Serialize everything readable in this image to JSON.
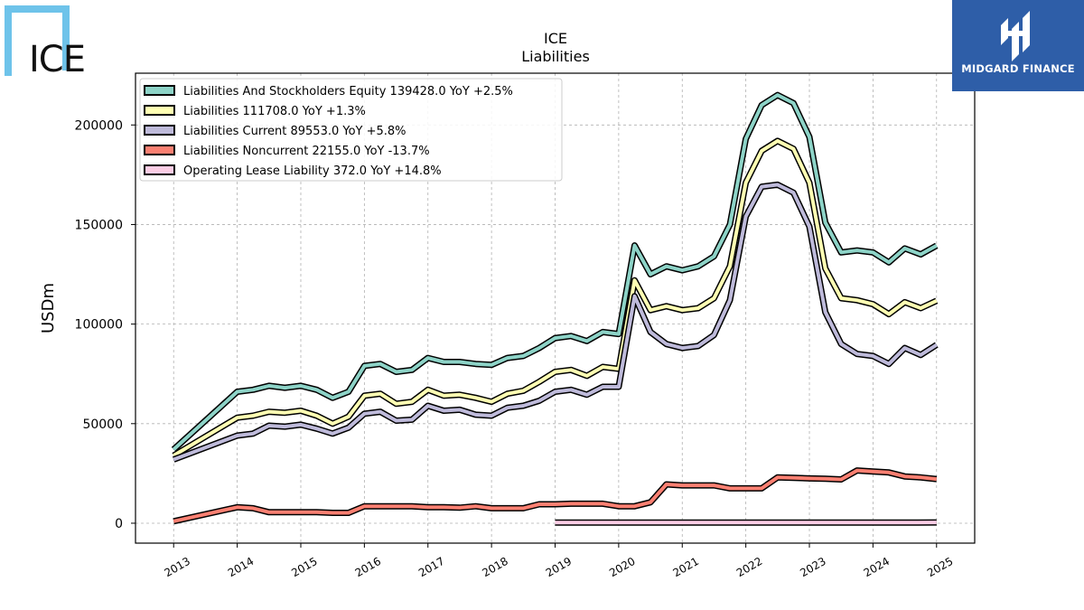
{
  "brand": {
    "logo_text": "ICE",
    "watermark_text": "MIDGARD FINANCE"
  },
  "colors": {
    "lse": "#8dd3c7",
    "liab": "#ffffb3",
    "lcur": "#bebada",
    "lnon": "#fb8072",
    "oll": "#fccde5",
    "brand": "#2e5ea8",
    "ice": "#6ec3ea"
  },
  "chart_data": {
    "type": "line",
    "title": "ICE",
    "subtitle": "Liabilities",
    "ylabel": "USDm",
    "xlabel": "",
    "ylim": [
      -10000,
      226000
    ],
    "xlim": [
      2012.4,
      2025.6
    ],
    "yticks": [
      0,
      50000,
      100000,
      150000,
      200000
    ],
    "yticklabels": [
      "0",
      "50000",
      "100000",
      "150000",
      "200000"
    ],
    "xticks": [
      2013,
      2014,
      2015,
      2016,
      2017,
      2018,
      2019,
      2020,
      2021,
      2022,
      2023,
      2024,
      2025
    ],
    "xticklabels": [
      "2013",
      "2014",
      "2015",
      "2016",
      "2017",
      "2018",
      "2019",
      "2020",
      "2021",
      "2022",
      "2023",
      "2024",
      "2025"
    ],
    "grid": true,
    "legend_position": "top-left",
    "series": [
      {
        "name": "Liabilities And Stockholders Equity",
        "legend": "Liabilities And Stockholders Equity  139428.0 YoY +2.5%",
        "color_key": "lse",
        "x": [
          2013.0,
          2014.0,
          2014.25,
          2014.5,
          2014.75,
          2015.0,
          2015.25,
          2015.5,
          2015.75,
          2016.0,
          2016.25,
          2016.5,
          2016.75,
          2017.0,
          2017.25,
          2017.5,
          2017.75,
          2018.0,
          2018.25,
          2018.5,
          2018.75,
          2019.0,
          2019.25,
          2019.5,
          2019.75,
          2020.0,
          2020.25,
          2020.5,
          2020.75,
          2021.0,
          2021.25,
          2021.5,
          2021.75,
          2022.0,
          2022.25,
          2022.5,
          2022.75,
          2023.0,
          2023.25,
          2023.5,
          2023.75,
          2024.0,
          2024.25,
          2024.5,
          2024.75,
          2025.0
        ],
        "y": [
          37000,
          66000,
          67000,
          69000,
          68000,
          69000,
          67000,
          63000,
          66000,
          79000,
          80000,
          76000,
          77000,
          83000,
          81000,
          81000,
          80000,
          79500,
          83000,
          84000,
          88000,
          93000,
          94000,
          91500,
          96000,
          95000,
          139500,
          125000,
          129000,
          127000,
          129000,
          134000,
          150000,
          193000,
          210000,
          215000,
          211000,
          194000,
          151000,
          136000,
          137000,
          136000,
          131000,
          138000,
          135000,
          139428
        ]
      },
      {
        "name": "Liabilities",
        "legend": "Liabilities  111708.0 YoY +1.3%",
        "color_key": "liab",
        "x": [
          2013.0,
          2014.0,
          2014.25,
          2014.5,
          2014.75,
          2015.0,
          2015.25,
          2015.5,
          2015.75,
          2016.0,
          2016.25,
          2016.5,
          2016.75,
          2017.0,
          2017.25,
          2017.5,
          2017.75,
          2018.0,
          2018.25,
          2018.5,
          2018.75,
          2019.0,
          2019.25,
          2019.5,
          2019.75,
          2020.0,
          2020.25,
          2020.5,
          2020.75,
          2021.0,
          2021.25,
          2021.5,
          2021.75,
          2022.0,
          2022.25,
          2022.5,
          2022.75,
          2023.0,
          2023.25,
          2023.5,
          2023.75,
          2024.0,
          2024.25,
          2024.5,
          2024.75,
          2025.0
        ],
        "y": [
          34000,
          53000,
          54000,
          56000,
          55500,
          56500,
          54000,
          50000,
          53500,
          64000,
          65000,
          60000,
          61000,
          67000,
          64000,
          64500,
          63000,
          61000,
          65000,
          66500,
          71000,
          76000,
          77000,
          74000,
          78500,
          77500,
          122000,
          107000,
          109000,
          107000,
          108000,
          113000,
          129000,
          171000,
          187000,
          192000,
          188000,
          171000,
          128000,
          113000,
          112000,
          110000,
          105000,
          111000,
          108000,
          111708
        ]
      },
      {
        "name": "Liabilities Current",
        "legend": "Liabilities Current  89553.0 YoY +5.8%",
        "color_key": "lcur",
        "x": [
          2013.0,
          2014.0,
          2014.25,
          2014.5,
          2014.75,
          2015.0,
          2015.25,
          2015.5,
          2015.75,
          2016.0,
          2016.25,
          2016.5,
          2016.75,
          2017.0,
          2017.25,
          2017.5,
          2017.75,
          2018.0,
          2018.25,
          2018.5,
          2018.75,
          2019.0,
          2019.25,
          2019.5,
          2019.75,
          2020.0,
          2020.25,
          2020.5,
          2020.75,
          2021.0,
          2021.25,
          2021.5,
          2021.75,
          2022.0,
          2022.25,
          2022.5,
          2022.75,
          2023.0,
          2023.25,
          2023.5,
          2023.75,
          2024.0,
          2024.25,
          2024.5,
          2024.75,
          2025.0
        ],
        "y": [
          32000,
          44000,
          45000,
          49000,
          48500,
          49500,
          47500,
          45000,
          48000,
          55000,
          56000,
          51500,
          52000,
          59000,
          56500,
          57000,
          54500,
          54000,
          58000,
          59000,
          61500,
          66000,
          67000,
          64500,
          68500,
          68500,
          114000,
          96000,
          90000,
          88000,
          89000,
          94500,
          112000,
          154000,
          169000,
          170000,
          166000,
          149000,
          106000,
          90000,
          85000,
          84000,
          80000,
          88000,
          84500,
          89553
        ]
      },
      {
        "name": "Liabilities Noncurrent",
        "legend": "Liabilities Noncurrent  22155.0 YoY -13.7%",
        "color_key": "lnon",
        "x": [
          2013.0,
          2014.0,
          2014.25,
          2014.5,
          2014.75,
          2015.0,
          2015.25,
          2015.5,
          2015.75,
          2016.0,
          2016.25,
          2016.5,
          2016.75,
          2017.0,
          2017.25,
          2017.5,
          2017.75,
          2018.0,
          2018.25,
          2018.5,
          2018.75,
          2019.0,
          2019.25,
          2019.5,
          2019.75,
          2020.0,
          2020.25,
          2020.5,
          2020.75,
          2021.0,
          2021.25,
          2021.5,
          2021.75,
          2022.0,
          2022.25,
          2022.5,
          2022.75,
          2023.0,
          2023.25,
          2023.5,
          2023.75,
          2024.0,
          2024.25,
          2024.5,
          2024.75,
          2025.0
        ],
        "y": [
          1000,
          8000,
          7500,
          5500,
          5500,
          5500,
          5500,
          5200,
          5200,
          8500,
          8500,
          8500,
          8500,
          8000,
          8000,
          7800,
          8500,
          7500,
          7500,
          7500,
          9500,
          9500,
          9800,
          9800,
          9800,
          8500,
          8500,
          10500,
          19500,
          19000,
          19000,
          19000,
          17500,
          17500,
          17500,
          23000,
          22800,
          22500,
          22300,
          22000,
          26500,
          26000,
          25500,
          23500,
          23000,
          22155
        ]
      },
      {
        "name": "Operating Lease Liability",
        "legend": "Operating Lease Liability  372.0 YoY +14.8%",
        "color_key": "oll",
        "x": [
          2019.0,
          2019.5,
          2020.0,
          2020.5,
          2021.0,
          2021.5,
          2022.0,
          2022.5,
          2023.0,
          2023.5,
          2024.0,
          2024.5,
          2025.0
        ],
        "y": [
          330,
          330,
          330,
          340,
          340,
          340,
          330,
          330,
          330,
          330,
          324,
          324,
          372
        ]
      }
    ]
  }
}
